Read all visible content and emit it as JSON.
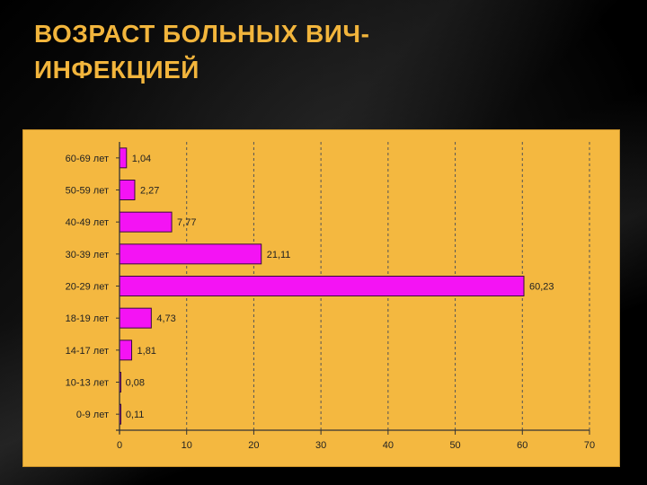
{
  "slide": {
    "title_line1": "ВОЗРАСТ БОЛЬНЫХ ВИЧ-",
    "title_line2": "ИНФЕКЦИЕЙ"
  },
  "colors": {
    "bar": "#f413f4",
    "panel": "#f4b840",
    "title": "#f2b53c",
    "background": "#000000"
  },
  "chart_data": {
    "type": "bar",
    "orientation": "horizontal",
    "title": "",
    "xlabel": "",
    "ylabel": "",
    "xlim": [
      0,
      70
    ],
    "xticks": [
      "0",
      "10",
      "20",
      "30",
      "40",
      "50",
      "60",
      "70"
    ],
    "grid": "vertical dashed",
    "categories": [
      "60-69 лет",
      "50-59 лет",
      "40-49 лет",
      "30-39 лет",
      "20-29 лет",
      "18-19 лет",
      "14-17 лет",
      "10-13 лет",
      "0-9 лет"
    ],
    "values": [
      1.04,
      2.27,
      7.77,
      21.11,
      60.23,
      4.73,
      1.81,
      0.08,
      0.11
    ],
    "value_labels": [
      "1,04",
      "2,27",
      "7,77",
      "21,11",
      "60,23",
      "4,73",
      "1,81",
      "0,08",
      "0,11"
    ]
  }
}
